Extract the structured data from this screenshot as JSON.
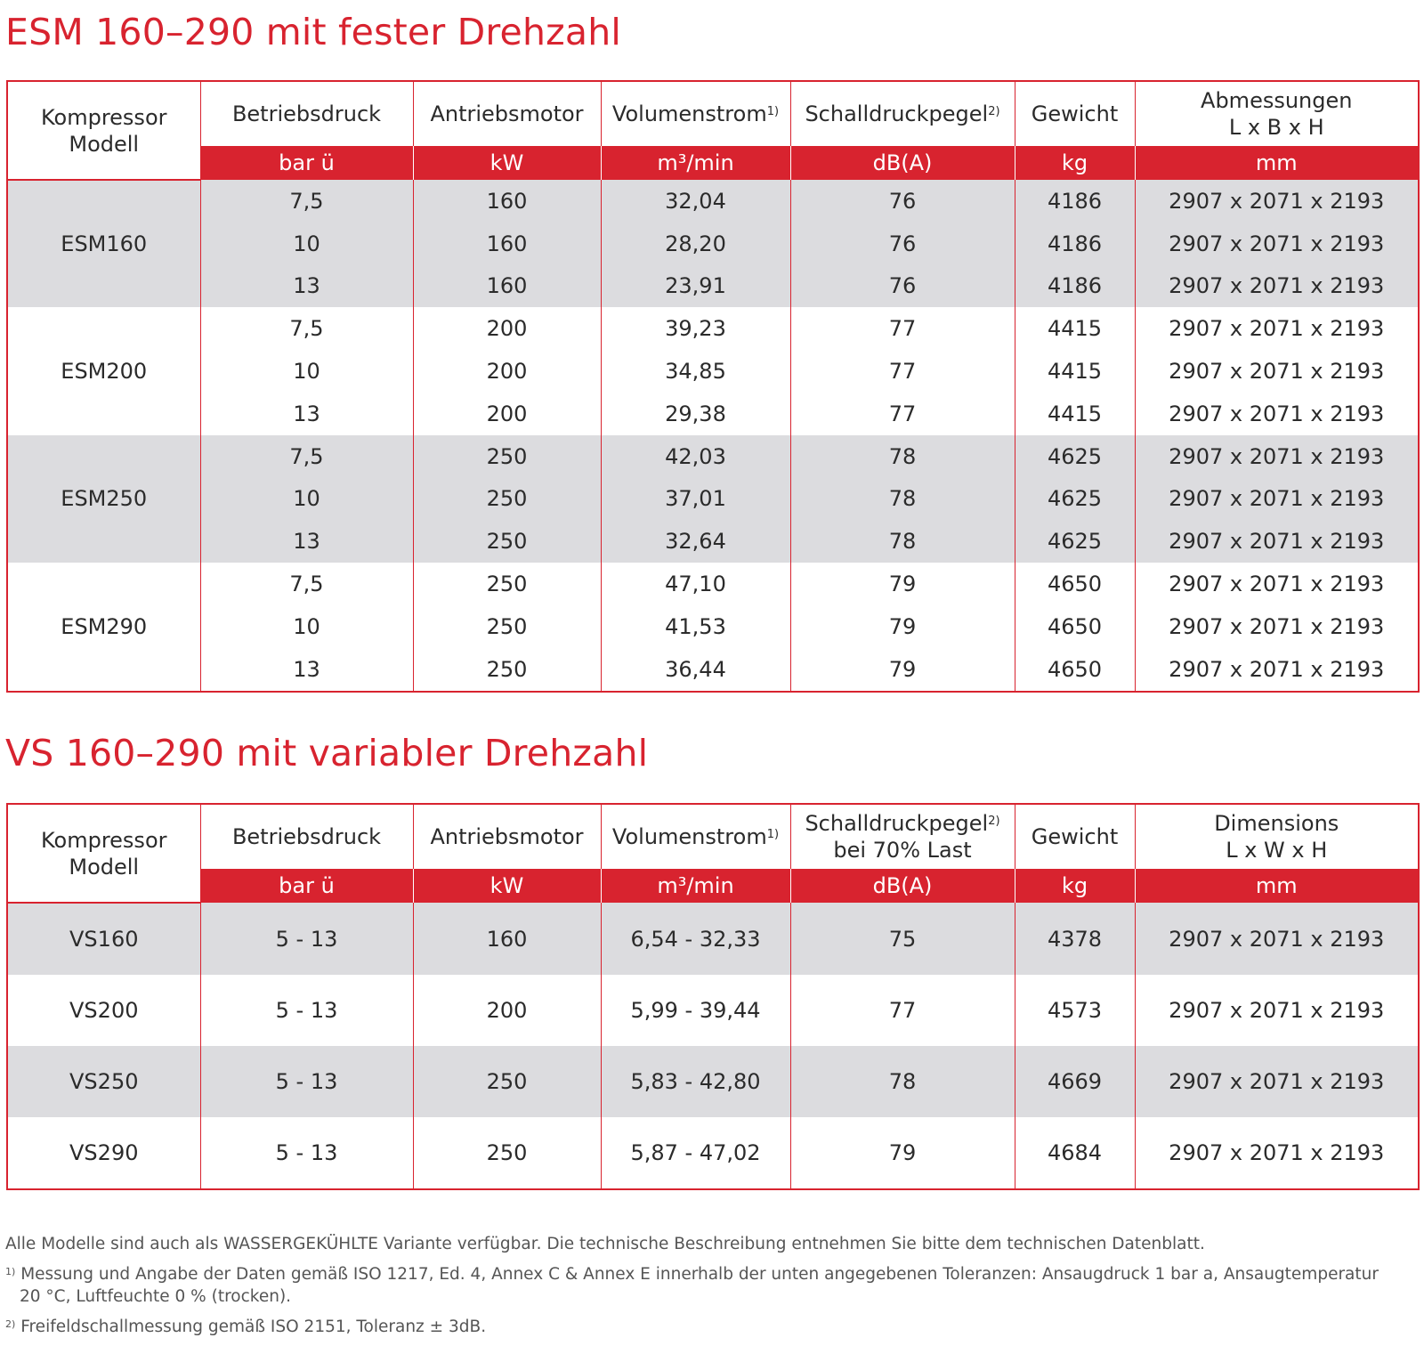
{
  "tables": [
    {
      "title": "ESM 160–290 mit fester Drehzahl",
      "headers": {
        "model": [
          "Kompressor",
          "Modell"
        ],
        "columns": [
          {
            "label": "Betriebsdruck",
            "label2": "",
            "sup": "",
            "unit": "bar ü"
          },
          {
            "label": "Antriebsmotor",
            "label2": "",
            "sup": "",
            "unit": "kW"
          },
          {
            "label": "Volumenstrom",
            "label2": "",
            "sup": "1)",
            "unit": "m³/min"
          },
          {
            "label": "Schalldruckpegel",
            "label2": "",
            "sup": "2)",
            "unit": "dB(A)"
          },
          {
            "label": "Gewicht",
            "label2": "",
            "sup": "",
            "unit": "kg"
          },
          {
            "label": "Abmessungen",
            "label2": "L x B x H",
            "sup": "",
            "unit": "mm"
          }
        ]
      },
      "groups": [
        {
          "model": "ESM160",
          "shaded": true,
          "rows": [
            [
              "7,5",
              "160",
              "32,04",
              "76",
              "4186",
              "2907 x 2071 x 2193"
            ],
            [
              "10",
              "160",
              "28,20",
              "76",
              "4186",
              "2907 x 2071 x 2193"
            ],
            [
              "13",
              "160",
              "23,91",
              "76",
              "4186",
              "2907 x 2071 x 2193"
            ]
          ]
        },
        {
          "model": "ESM200",
          "shaded": false,
          "rows": [
            [
              "7,5",
              "200",
              "39,23",
              "77",
              "4415",
              "2907 x 2071 x 2193"
            ],
            [
              "10",
              "200",
              "34,85",
              "77",
              "4415",
              "2907 x 2071 x 2193"
            ],
            [
              "13",
              "200",
              "29,38",
              "77",
              "4415",
              "2907 x 2071 x 2193"
            ]
          ]
        },
        {
          "model": "ESM250",
          "shaded": true,
          "rows": [
            [
              "7,5",
              "250",
              "42,03",
              "78",
              "4625",
              "2907 x 2071 x 2193"
            ],
            [
              "10",
              "250",
              "37,01",
              "78",
              "4625",
              "2907 x 2071 x 2193"
            ],
            [
              "13",
              "250",
              "32,64",
              "78",
              "4625",
              "2907 x 2071 x 2193"
            ]
          ]
        },
        {
          "model": "ESM290",
          "shaded": false,
          "rows": [
            [
              "7,5",
              "250",
              "47,10",
              "79",
              "4650",
              "2907 x 2071 x 2193"
            ],
            [
              "10",
              "250",
              "41,53",
              "79",
              "4650",
              "2907 x 2071 x 2193"
            ],
            [
              "13",
              "250",
              "36,44",
              "79",
              "4650",
              "2907 x 2071 x 2193"
            ]
          ]
        }
      ]
    },
    {
      "title": "VS 160–290 mit variabler Drehzahl",
      "headers": {
        "model": [
          "Kompressor",
          "Modell"
        ],
        "columns": [
          {
            "label": "Betriebsdruck",
            "label2": "",
            "sup": "",
            "unit": "bar ü"
          },
          {
            "label": "Antriebsmotor",
            "label2": "",
            "sup": "",
            "unit": "kW"
          },
          {
            "label": "Volumenstrom",
            "label2": "",
            "sup": "1)",
            "unit": "m³/min"
          },
          {
            "label": "Schalldruckpegel",
            "label2": "bei 70% Last",
            "sup": "2)",
            "unit": "dB(A)"
          },
          {
            "label": "Gewicht",
            "label2": "",
            "sup": "",
            "unit": "kg"
          },
          {
            "label": "Dimensions",
            "label2": "L x W x H",
            "sup": "",
            "unit": "mm"
          }
        ]
      },
      "groups": [
        {
          "model": "VS160",
          "shaded": true,
          "rows": [
            [
              "5 - 13",
              "160",
              "6,54 - 32,33",
              "75",
              "4378",
              "2907 x 2071 x 2193"
            ]
          ]
        },
        {
          "model": "VS200",
          "shaded": false,
          "rows": [
            [
              "5 - 13",
              "200",
              "5,99 - 39,44",
              "77",
              "4573",
              "2907 x 2071 x 2193"
            ]
          ]
        },
        {
          "model": "VS250",
          "shaded": true,
          "rows": [
            [
              "5 - 13",
              "250",
              "5,83 - 42,80",
              "78",
              "4669",
              "2907 x 2071 x 2193"
            ]
          ]
        },
        {
          "model": "VS290",
          "shaded": false,
          "rows": [
            [
              "5 - 13",
              "250",
              "5,87 - 47,02",
              "79",
              "4684",
              "2907 x 2071 x 2193"
            ]
          ]
        }
      ]
    }
  ],
  "footnotes": {
    "general": "Alle Modelle sind auch als WASSERGEKÜHLTE Variante verfügbar. Die technische Beschreibung entnehmen Sie bitte dem technischen Datenblatt.",
    "note1_mark": "1)",
    "note1": "Messung und Angabe der Daten gemäß ISO 1217, Ed. 4, Annex C & Annex E innerhalb der unten angegebenen Toleranzen: Ansaugdruck 1 bar a, Ansaugtemperatur 20 °C, Luftfeuchte 0 % (trocken).",
    "note2_mark": "2)",
    "note2": "Freifeldschallmessung gemäß ISO 2151, Toleranz ± 3dB."
  },
  "colors": {
    "accent": "#d8232f",
    "shade": "#dcdcdf",
    "text": "#2b2b2b"
  }
}
